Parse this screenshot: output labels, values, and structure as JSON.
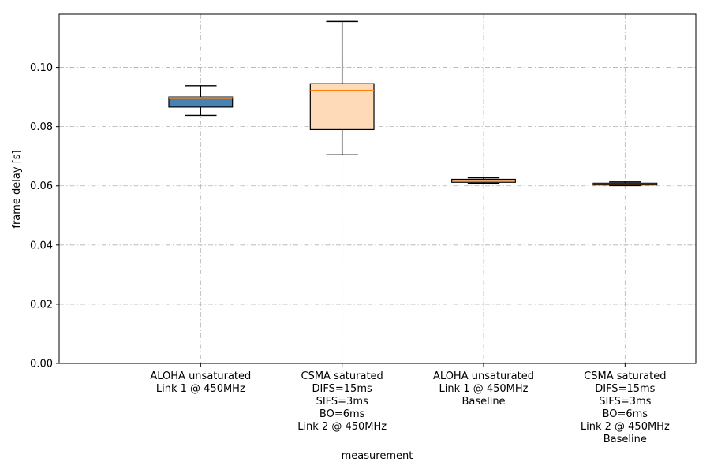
{
  "chart_data": {
    "type": "box",
    "title": "",
    "xlabel": "measurement",
    "ylabel": "frame delay [s]",
    "ylim": [
      0.0,
      0.118
    ],
    "yticks": [
      0.0,
      0.02,
      0.04,
      0.06,
      0.08,
      0.1
    ],
    "ytick_labels": [
      "0.00",
      "0.02",
      "0.04",
      "0.06",
      "0.08",
      "0.10"
    ],
    "x_range": [
      0.0,
      4.5
    ],
    "grid": true,
    "boxes": [
      {
        "x": 1,
        "label_lines": [
          "ALOHA unsaturated",
          "Link 1 @ 450MHz"
        ],
        "whisker_low": 0.0838,
        "q1": 0.0866,
        "median": 0.0898,
        "q3": 0.09,
        "whisker_high": 0.0938,
        "fill": "#4682b4"
      },
      {
        "x": 2,
        "label_lines": [
          "CSMA saturated",
          "DIFS=15ms",
          "SIFS=3ms",
          "BO=6ms",
          "Link 2 @ 450MHz"
        ],
        "whisker_low": 0.0705,
        "q1": 0.079,
        "median": 0.0922,
        "q3": 0.0945,
        "whisker_high": 0.1155,
        "fill": "#ffdab9"
      },
      {
        "x": 3,
        "label_lines": [
          "ALOHA unsaturated",
          "Link 1 @ 450MHz",
          "Baseline"
        ],
        "whisker_low": 0.0608,
        "q1": 0.0612,
        "median": 0.0617,
        "q3": 0.0622,
        "whisker_high": 0.0627,
        "fill": "#ffdab9"
      },
      {
        "x": 4,
        "label_lines": [
          "CSMA saturated",
          "DIFS=15ms",
          "SIFS=3ms",
          "BO=6ms",
          "Link 2 @ 450MHz",
          "Baseline"
        ],
        "whisker_low": 0.0601,
        "q1": 0.0603,
        "median": 0.0606,
        "q3": 0.0609,
        "whisker_high": 0.0613,
        "fill": "#ffdab9"
      }
    ],
    "colors": {
      "median": "#ff7f0e",
      "grid": "#b0b0b0",
      "edge": "#000000"
    }
  }
}
